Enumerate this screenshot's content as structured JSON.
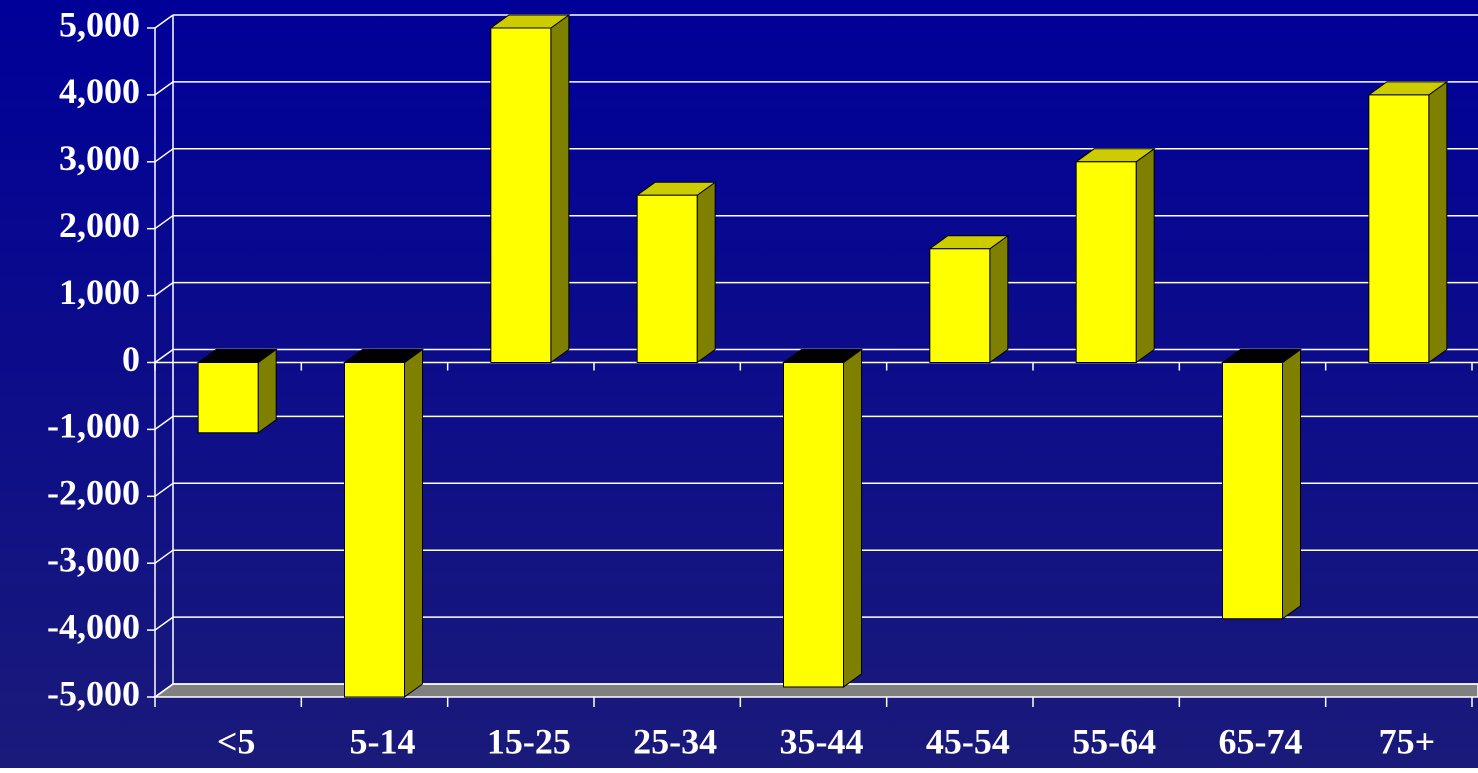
{
  "chart_data": {
    "type": "bar",
    "categories": [
      "<5",
      "5-14",
      "15-25",
      "25-34",
      "35-44",
      "45-54",
      "55-64",
      "65-74",
      "75+"
    ],
    "values": [
      -1050,
      -5000,
      5000,
      2500,
      -4850,
      1700,
      3000,
      -3830,
      4000
    ],
    "color": "#ffff00",
    "ylim": [
      -5000,
      5000
    ],
    "yticks": [
      {
        "value": -5000,
        "label": "-5,000"
      },
      {
        "value": -4000,
        "label": "-4,000"
      },
      {
        "value": -3000,
        "label": "-3,000"
      },
      {
        "value": -2000,
        "label": "-2,000"
      },
      {
        "value": -1000,
        "label": "-1,000"
      },
      0,
      {
        "value": 1000,
        "label": "1,000"
      },
      {
        "value": 2000,
        "label": "2,000"
      },
      {
        "value": 3000,
        "label": "3,000"
      },
      {
        "value": 4000,
        "label": "4,000"
      },
      {
        "value": 5000,
        "label": "5,000"
      }
    ],
    "grid": true
  }
}
